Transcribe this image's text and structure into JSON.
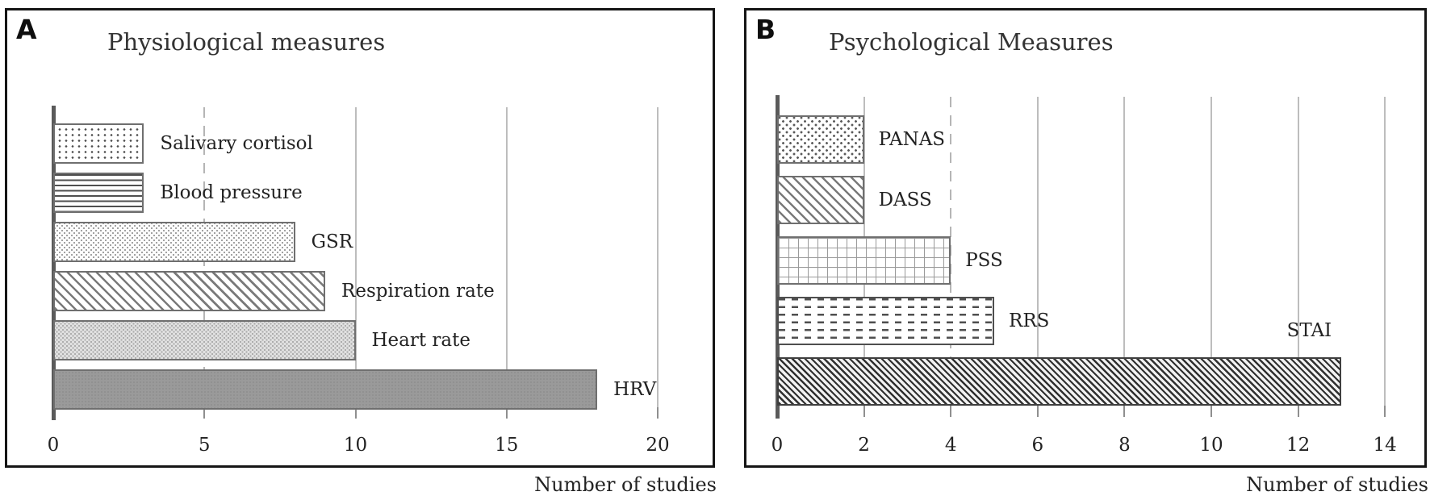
{
  "figure": {
    "background": "#ffffff",
    "frame_color": "#151515",
    "gridline_color": "#bdbdbd",
    "spine_color": "#5a5a5a",
    "text_color": "#222222",
    "bar_border_color": "#6f6f6f"
  },
  "chart_data": [
    {
      "type": "bar",
      "orientation": "horizontal",
      "panel_label": "A",
      "title": "Physiological measures",
      "xlabel": "Number of studies",
      "categories": [
        "Salivary cortisol",
        "Blood pressure",
        "GSR",
        "Respiration rate",
        "Heart rate",
        "HRV"
      ],
      "values": [
        3,
        3,
        8,
        9,
        10,
        18
      ],
      "xlim": [
        0,
        20
      ],
      "xticks": [
        0,
        5,
        10,
        15,
        20
      ],
      "dashed_gridlines": [
        5
      ],
      "grid": true,
      "legend": false,
      "patterns": [
        "dots-sparse",
        "hlines",
        "dots-fine",
        "diag-medium",
        "dots-gray",
        "solid-gray"
      ],
      "label_positions": [
        "right",
        "right",
        "right",
        "right",
        "right",
        "right"
      ]
    },
    {
      "type": "bar",
      "orientation": "horizontal",
      "panel_label": "B",
      "title": "Psychological Measures",
      "xlabel": "Number of studies",
      "categories": [
        "PANAS",
        "DASS",
        "PSS",
        "RRS",
        "STAI"
      ],
      "values": [
        2,
        2,
        4,
        5,
        13
      ],
      "xlim": [
        0,
        14
      ],
      "xticks": [
        0,
        2,
        4,
        6,
        8,
        10,
        12,
        14
      ],
      "dashed_gridlines": [
        4
      ],
      "grid": true,
      "legend": false,
      "patterns": [
        "dots-checker",
        "diag-medium",
        "grid",
        "dashes",
        "diag-dense"
      ],
      "label_positions": [
        "right",
        "right",
        "right",
        "right",
        "above-end"
      ]
    }
  ]
}
